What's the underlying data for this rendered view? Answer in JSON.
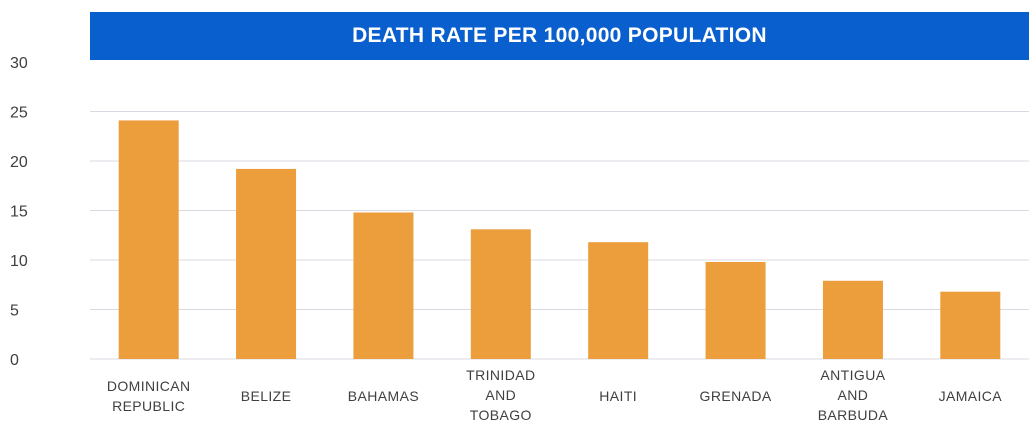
{
  "chart_data": {
    "type": "bar",
    "title": "DEATH RATE PER 100,000 POPULATION",
    "categories": [
      "DOMINICAN REPUBLIC",
      "BELIZE",
      "BAHAMAS",
      "TRINIDAD AND TOBAGO",
      "HAITI",
      "GRENADA",
      "ANTIGUA AND BARBUDA",
      "JAMAICA"
    ],
    "category_lines": [
      [
        "DOMINICAN",
        "REPUBLIC"
      ],
      [
        "BELIZE"
      ],
      [
        "BAHAMAS"
      ],
      [
        "TRINIDAD",
        "AND",
        "TOBAGO"
      ],
      [
        "HAITI"
      ],
      [
        "GRENADA"
      ],
      [
        "ANTIGUA",
        "AND",
        "BARBUDA"
      ],
      [
        "JAMAICA"
      ]
    ],
    "values": [
      24.1,
      19.2,
      14.8,
      13.1,
      11.8,
      9.8,
      7.9,
      6.8
    ],
    "ylim": [
      0,
      30
    ],
    "yticks": [
      "0",
      "5",
      "10",
      "15",
      "20",
      "25",
      "30"
    ],
    "grid": true,
    "colors": {
      "bar": "#EC9D3C",
      "title_bar": "#0A5FCF",
      "grid": "#D9D9E3"
    }
  }
}
